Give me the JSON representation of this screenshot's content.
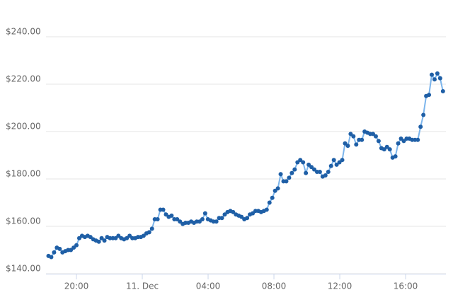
{
  "chart_data": {
    "type": "line",
    "x": [
      18.3,
      18.47,
      18.64,
      18.81,
      18.98,
      19.15,
      19.32,
      19.49,
      19.66,
      19.83,
      20.0,
      20.17,
      20.34,
      20.51,
      20.68,
      20.85,
      21.02,
      21.19,
      21.36,
      21.53,
      21.7,
      21.87,
      22.04,
      22.21,
      22.38,
      22.55,
      22.72,
      22.89,
      23.06,
      23.23,
      23.4,
      23.57,
      23.74,
      23.91,
      24.08,
      24.25,
      24.42,
      24.59,
      24.76,
      24.93,
      25.1,
      25.27,
      25.44,
      25.61,
      25.78,
      25.95,
      26.12,
      26.29,
      26.46,
      26.63,
      26.8,
      26.97,
      27.14,
      27.31,
      27.48,
      27.65,
      27.82,
      27.99,
      28.16,
      28.33,
      28.5,
      28.67,
      28.84,
      29.01,
      29.18,
      29.35,
      29.52,
      29.69,
      29.86,
      30.03,
      30.2,
      30.37,
      30.54,
      30.71,
      30.88,
      31.05,
      31.22,
      31.39,
      31.56,
      31.73,
      31.9,
      32.07,
      32.24,
      32.41,
      32.58,
      32.75,
      32.92,
      33.09,
      33.26,
      33.43,
      33.6,
      33.77,
      33.94,
      34.11,
      34.28,
      34.45,
      34.62,
      34.79,
      34.96,
      35.13,
      35.3,
      35.47,
      35.64,
      35.81,
      35.98,
      36.15,
      36.32,
      36.49,
      36.66,
      36.83,
      37.0,
      37.17,
      37.34,
      37.51,
      37.68,
      37.85,
      38.02,
      38.19,
      38.36,
      38.53,
      38.7,
      38.87,
      39.04,
      39.21,
      39.38,
      39.55,
      39.72,
      39.89,
      40.06,
      40.23,
      40.4,
      40.57,
      40.74,
      40.91,
      41.08,
      41.25,
      41.42,
      41.59,
      41.76,
      41.93,
      42.1,
      42.27
    ],
    "values": [
      147.5,
      147,
      149,
      151,
      150.5,
      149,
      149.5,
      150,
      150,
      151,
      152,
      155,
      156,
      155.5,
      156,
      155.5,
      154.5,
      154,
      153.5,
      155,
      154,
      155.5,
      155,
      155,
      155,
      156,
      155,
      154.5,
      155,
      156,
      155,
      155,
      155.5,
      155.5,
      156,
      157,
      157.5,
      159,
      163,
      163,
      167,
      167,
      165,
      164,
      164.5,
      163,
      163,
      162,
      161,
      161.5,
      161.5,
      162,
      161.5,
      162,
      162,
      163,
      165.5,
      163,
      162.5,
      162,
      162,
      163.5,
      163.5,
      165,
      166,
      166.5,
      166,
      165,
      164.5,
      164,
      163,
      163.5,
      165,
      165.5,
      166.5,
      166.5,
      166,
      166.5,
      167,
      170,
      172,
      175,
      176,
      182,
      179,
      179,
      180.5,
      182.5,
      184,
      187,
      188,
      187,
      182.5,
      186,
      185,
      184,
      183,
      183,
      181,
      181.5,
      183,
      185.5,
      188,
      186,
      187,
      188,
      195,
      194,
      199,
      198,
      194.5,
      196.5,
      196.5,
      200,
      199.5,
      199,
      199,
      198,
      196,
      193,
      192.5,
      193.5,
      192.5,
      189,
      189.5,
      195,
      197,
      196,
      197,
      197,
      196.5,
      196.5,
      196.5,
      202,
      207,
      215,
      215.5,
      224,
      222,
      224.5,
      222.5,
      217
    ],
    "line_color": "#7cb5ec",
    "marker_color": "#1f5fa6",
    "xlim": [
      18.15,
      42.45
    ],
    "xticks": [
      {
        "value": 20,
        "label": "20:00"
      },
      {
        "value": 24,
        "label": "11. Dec"
      },
      {
        "value": 28,
        "label": "04:00"
      },
      {
        "value": 32,
        "label": "08:00"
      },
      {
        "value": 36,
        "label": "12:00"
      },
      {
        "value": 40,
        "label": "16:00"
      }
    ],
    "ylim": [
      140,
      240
    ],
    "yticks": [
      {
        "value": 140,
        "label": "$140.00"
      },
      {
        "value": 160,
        "label": "$160.00"
      },
      {
        "value": 180,
        "label": "$180.00"
      },
      {
        "value": 200,
        "label": "$200.00"
      },
      {
        "value": 220,
        "label": "$220.00"
      },
      {
        "value": 240,
        "label": "$240.00"
      }
    ],
    "grid": true
  }
}
